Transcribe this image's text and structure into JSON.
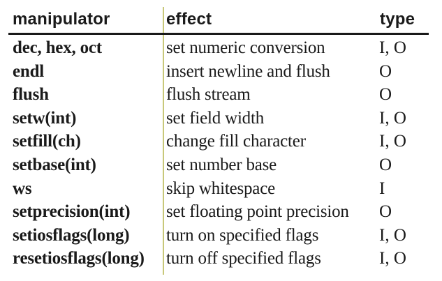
{
  "table": {
    "headers": {
      "manipulator": "manipulator",
      "effect": "effect",
      "type": "type"
    },
    "rows": [
      {
        "manipulator": "dec, hex, oct",
        "effect": "set numeric conversion",
        "type": "I, O"
      },
      {
        "manipulator": "endl",
        "effect": "insert newline and flush",
        "type": "O"
      },
      {
        "manipulator": "flush",
        "effect": "flush stream",
        "type": "O"
      },
      {
        "manipulator": "setw(int)",
        "effect": "set field width",
        "type": "I, O"
      },
      {
        "manipulator": "setfill(ch)",
        "effect": "change fill character",
        "type": "I, O"
      },
      {
        "manipulator": "setbase(int)",
        "effect": "set number base",
        "type": "O"
      },
      {
        "manipulator": "ws",
        "effect": "skip whitespace",
        "type": "I"
      },
      {
        "manipulator": "setprecision(int)",
        "effect": "set floating point precision",
        "type": "O"
      },
      {
        "manipulator": "setiosflags(long)",
        "effect": "turn on specified flags",
        "type": "I, O"
      },
      {
        "manipulator": "resetiosflags(long)",
        "effect": "turn off specified flags",
        "type": "I, O"
      }
    ]
  },
  "colors": {
    "header_rule": "#1a1a1a",
    "column_divider": "#c8c87a",
    "text": "#1a1a1a",
    "background": "#ffffff"
  }
}
